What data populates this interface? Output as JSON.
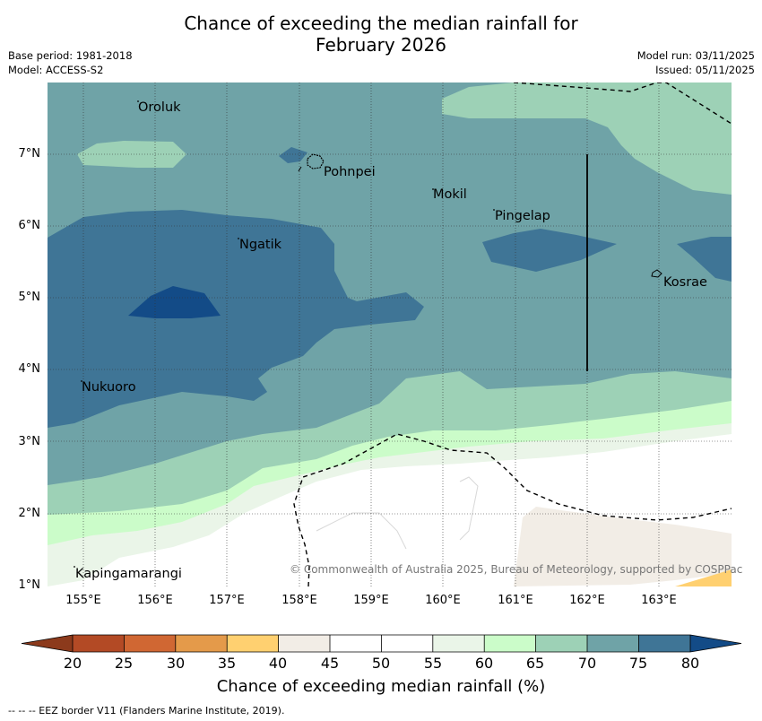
{
  "title": {
    "line1": "Chance of exceeding the median rainfall for",
    "line2": "February 2026"
  },
  "meta": {
    "base_period": "Base period: 1981-2018",
    "model": "Model: ACCESS-S2",
    "model_run": "Model run: 03/11/2025",
    "issued": "Issued: 05/11/2025"
  },
  "axes": {
    "lat_ticks": [
      "7°N",
      "6°N",
      "5°N",
      "4°N",
      "3°N",
      "2°N",
      "1°N"
    ],
    "lon_ticks": [
      "155°E",
      "156°E",
      "157°E",
      "158°E",
      "159°E",
      "160°E",
      "161°E",
      "162°E",
      "163°E"
    ]
  },
  "places": [
    {
      "name": "Oroluk"
    },
    {
      "name": "Pohnpei"
    },
    {
      "name": "Mokil"
    },
    {
      "name": "Pingelap"
    },
    {
      "name": "Ngatik"
    },
    {
      "name": "Kosrae"
    },
    {
      "name": "Nukuoro"
    },
    {
      "name": "Kapingamarangi"
    }
  ],
  "copyright": "© Commonwealth of Australia 2025, Bureau of Meteorology, supported by COSPPac",
  "colorbar": {
    "title": "Chance of exceeding median rainfall (%)",
    "ticks": [
      "20",
      "25",
      "30",
      "35",
      "40",
      "45",
      "50",
      "55",
      "60",
      "65",
      "70",
      "75",
      "80"
    ],
    "colors": {
      "under": "#8c3a1c",
      "c20_25": "#b34a25",
      "c25_30": "#d06733",
      "c30_35": "#e49a4a",
      "c35_40": "#ffd070",
      "c40_45": "#f2ede6",
      "c45_50": "#ffffff",
      "c50_55": "#ffffff",
      "c55_60": "#eaf5e8",
      "c60_65": "#cbfcc9",
      "c65_70": "#9dd1b6",
      "c70_75": "#6fa3a7",
      "c75_80": "#3f7596",
      "over": "#134b87"
    }
  },
  "footer": "--  --  -- EEZ border V11 (Flanders Marine Institute, 2019)."
}
